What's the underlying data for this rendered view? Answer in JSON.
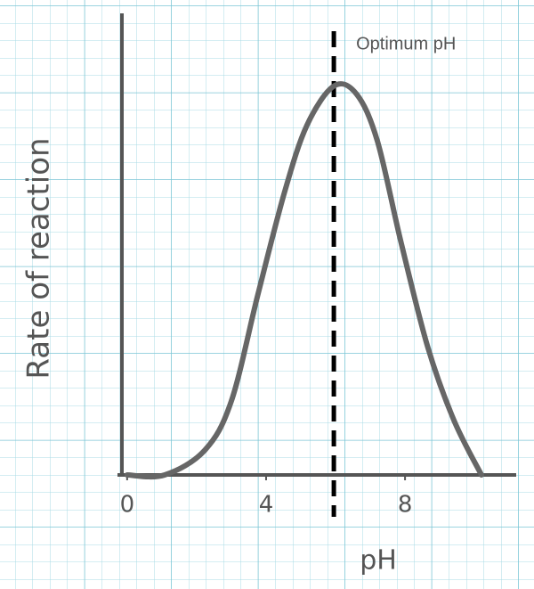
{
  "chart_data": {
    "type": "line",
    "y_label": "Rate of reaction",
    "x_label": "pH",
    "x": [
      0,
      1.08,
      2.24,
      3.0,
      3.77,
      4.54,
      5.18,
      5.95,
      6.6,
      7.2,
      7.88,
      8.65,
      9.41,
      10.2
    ],
    "series": [
      {
        "name": "Rate",
        "color": "#666666",
        "values": [
          0,
          0,
          0.64,
          1.9,
          4.66,
          7.3,
          9.0,
          10,
          9.8,
          8.6,
          6.0,
          3.3,
          1.4,
          0
        ]
      }
    ],
    "xlim": [
      -0.15,
      11.2
    ],
    "ylim": [
      0,
      11
    ],
    "xticks": [
      0,
      4,
      8
    ],
    "annotations": [
      {
        "text": "Optimum pH",
        "x": 5.95
      }
    ]
  }
}
